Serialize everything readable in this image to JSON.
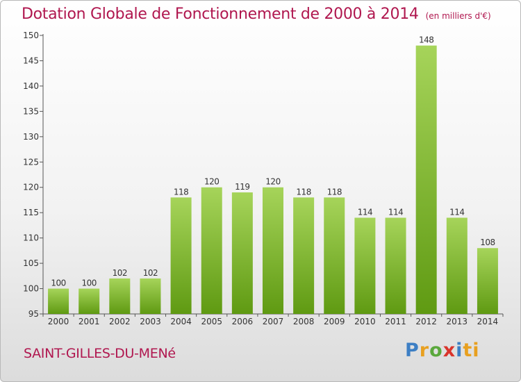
{
  "header": {
    "title": "Dotation Globale de Fonctionnement de 2000 à 2014",
    "subtitle": "(en milliers d'€)"
  },
  "footer": {
    "city": "SAINT-GILLES-DU-MENé",
    "logo": {
      "text": "Proxiti",
      "letters": [
        "P",
        "r",
        "o",
        "x",
        "i",
        "ti"
      ],
      "colors": [
        "#3d7fc4",
        "#e8a020",
        "#5aa83c",
        "#d9342b",
        "#3d7fc4",
        "#e8a020"
      ]
    }
  },
  "chart_data": {
    "type": "bar",
    "categories": [
      "2000",
      "2001",
      "2002",
      "2003",
      "2004",
      "2005",
      "2006",
      "2007",
      "2008",
      "2009",
      "2010",
      "2011",
      "2012",
      "2013",
      "2014"
    ],
    "values": [
      100,
      100,
      102,
      102,
      118,
      120,
      119,
      120,
      118,
      118,
      114,
      114,
      148,
      114,
      108
    ],
    "data_labels": [
      "100",
      "100",
      "102",
      "102",
      "118",
      "120",
      "119",
      "120",
      "118",
      "118",
      "114",
      "114",
      "148",
      "114",
      "108"
    ],
    "title": "Dotation Globale de Fonctionnement de 2000 à 2014",
    "subtitle": "(en milliers d'€)",
    "xlabel": "",
    "ylabel": "",
    "ylim": [
      95,
      150
    ],
    "yticks": [
      95,
      100,
      105,
      110,
      115,
      120,
      125,
      130,
      135,
      140,
      145,
      150
    ],
    "ytick_labels": [
      "95",
      "100",
      "105",
      "110",
      "115",
      "120",
      "125",
      "130",
      "135",
      "140",
      "145",
      "150"
    ],
    "grid": false,
    "legend": "none",
    "colors": {
      "bar_top": "#a6d45a",
      "bar_bottom": "#5f9a12",
      "axis": "#555555",
      "text": "#333333",
      "title": "#b0174f"
    }
  }
}
